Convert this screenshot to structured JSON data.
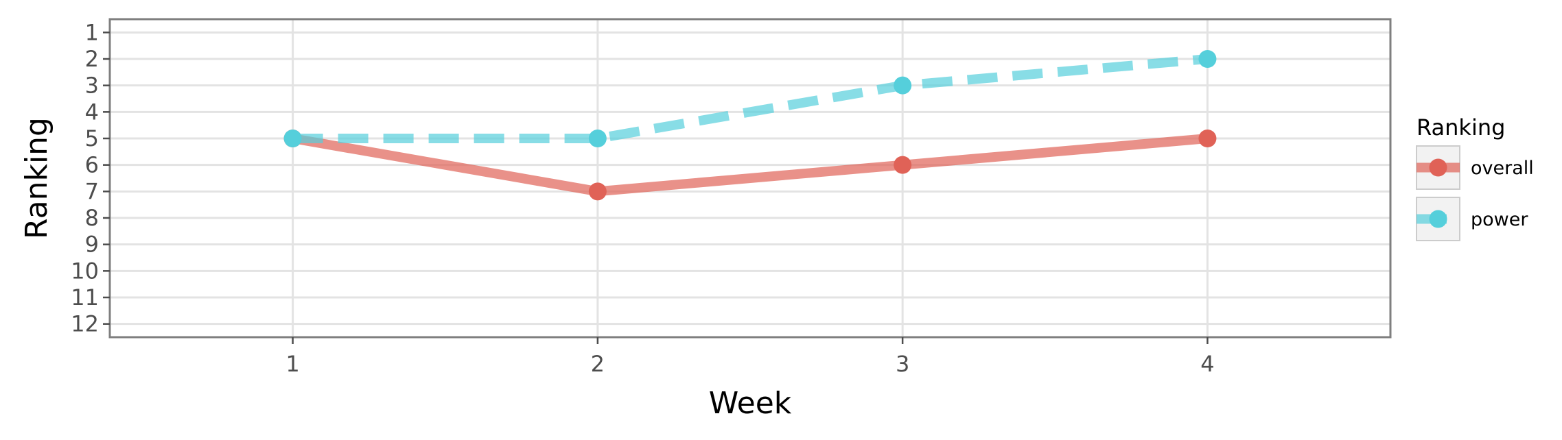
{
  "chart_data": {
    "type": "line",
    "xlabel": "Week",
    "ylabel": "Ranking",
    "x": [
      1,
      2,
      3,
      4
    ],
    "x_ticks": [
      "1",
      "2",
      "3",
      "4"
    ],
    "xlim": [
      0.4,
      4.6
    ],
    "y_ticks": [
      "1",
      "2",
      "3",
      "4",
      "5",
      "6",
      "7",
      "8",
      "9",
      "10",
      "11",
      "12"
    ],
    "ylim": [
      12.5,
      0.5
    ],
    "y_reversed": true,
    "grid": true,
    "legend": {
      "title": "Ranking",
      "position": "right"
    },
    "series": [
      {
        "name": "overall",
        "values": [
          5,
          7,
          6,
          5
        ],
        "color": "#e06257",
        "line_style": "solid"
      },
      {
        "name": "power",
        "values": [
          5,
          5,
          3,
          2
        ],
        "color": "#55cfdb",
        "line_style": "dashed"
      }
    ]
  }
}
